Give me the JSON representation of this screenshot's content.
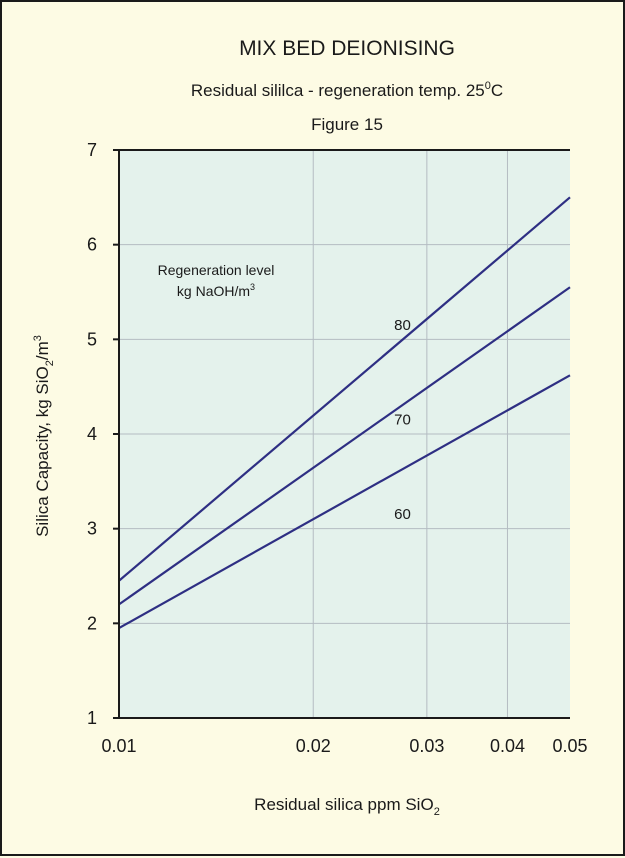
{
  "chart_data": {
    "type": "line",
    "title": "MIX BED DEIONISING",
    "subtitle": {
      "text": "Residual sililca - regeneration temp. 25",
      "sup": "0",
      "suffix": "C"
    },
    "figure_label": "Figure 15",
    "xlabel": {
      "text": "Residual silica ppm SiO",
      "sub": "2"
    },
    "ylabel": {
      "pre": "Silica Capacity, kg SiO",
      "sub": "2",
      "mid": "/m",
      "sup": "3"
    },
    "x_scale": "log",
    "xlim": [
      0.01,
      0.05
    ],
    "ylim": [
      1,
      7
    ],
    "x_ticks": [
      0.01,
      0.02,
      0.03,
      0.04,
      0.05
    ],
    "x_tick_labels": [
      "0.01",
      "0.02",
      "0.03",
      "0.04",
      "0.05"
    ],
    "y_ticks": [
      1,
      2,
      3,
      4,
      5,
      6,
      7
    ],
    "y_tick_labels": [
      "1",
      "2",
      "3",
      "4",
      "5",
      "6",
      "7"
    ],
    "grid": true,
    "annotation": {
      "line1": "Regeneration level",
      "line2": {
        "text": "kg NaOH/m",
        "sup": "3"
      }
    },
    "series": [
      {
        "name": "80",
        "x": [
          0.01,
          0.05
        ],
        "y": [
          2.45,
          6.5
        ],
        "label_at": {
          "x": 0.0275,
          "y": 5.1
        }
      },
      {
        "name": "70",
        "x": [
          0.01,
          0.05
        ],
        "y": [
          2.2,
          5.55
        ],
        "label_at": {
          "x": 0.0275,
          "y": 4.1
        }
      },
      {
        "name": "60",
        "x": [
          0.01,
          0.05
        ],
        "y": [
          1.95,
          4.62
        ],
        "label_at": {
          "x": 0.0275,
          "y": 3.1
        }
      }
    ],
    "colors": {
      "background": "#fdfbe4",
      "plot_area": "#e4f2ec",
      "line": "#2e2f83",
      "grid": "#b4bcc2",
      "axis": "#1a1a1a"
    }
  }
}
